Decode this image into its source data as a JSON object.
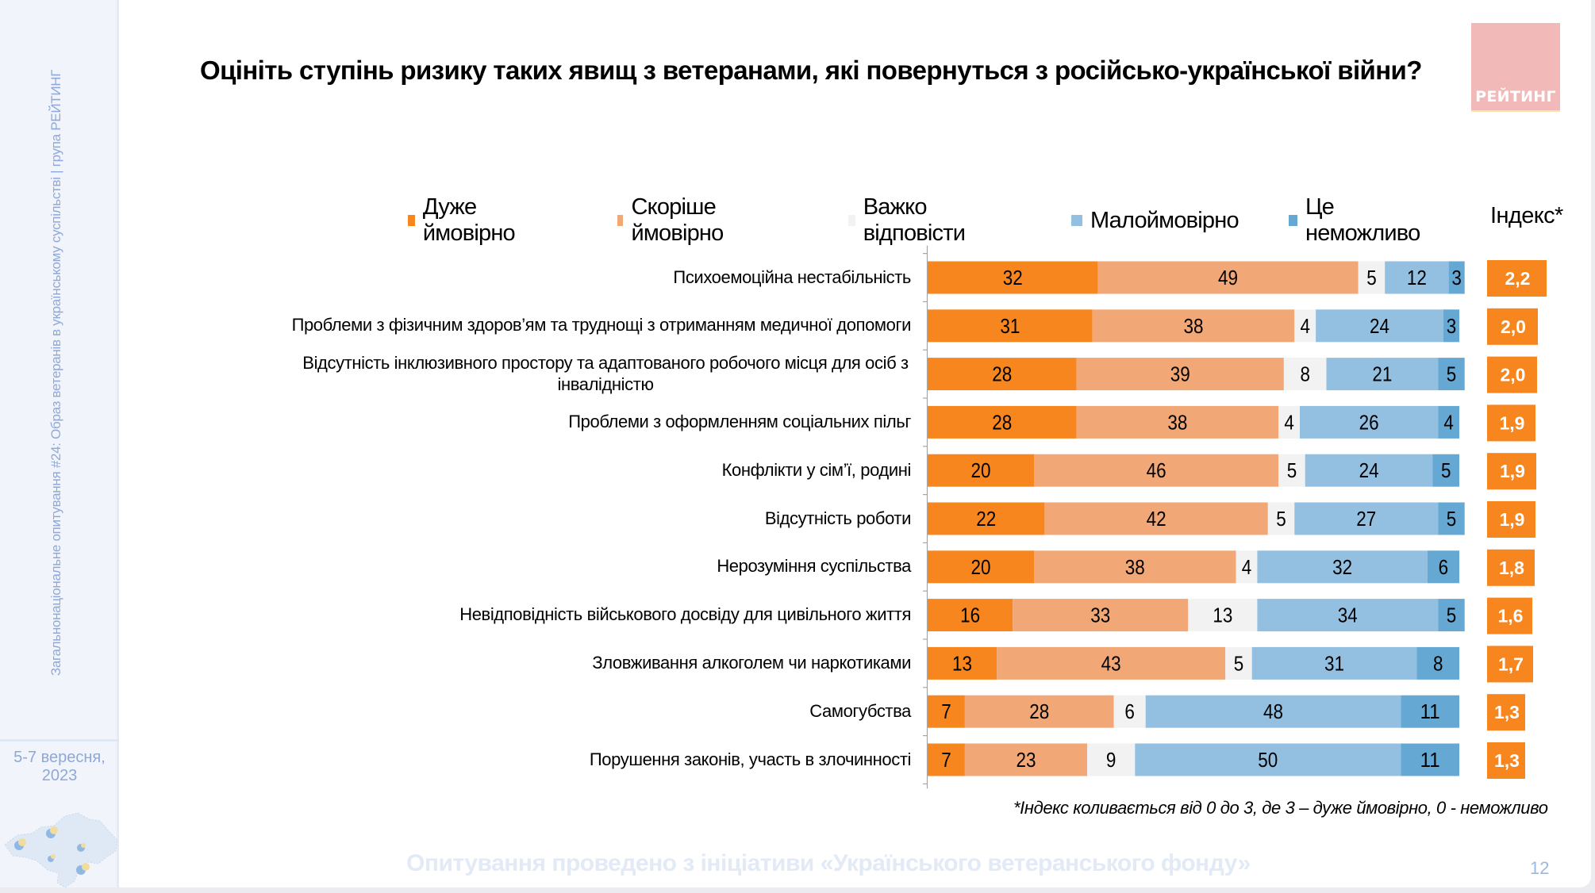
{
  "sidebar": {
    "vertical_text": "Загальнонаціональне опитування #24: Образ ветеранів в українському суспільстві | група РЕЙТИНГ",
    "date_line1": "5-7 вересня,",
    "date_line2": "2023",
    "map_icon": "ukraine-map-icon"
  },
  "header": {
    "title": "Оцініть ступінь ризику таких явищ з ветеранами, які повернуться з російсько-української війни?",
    "logo_text": "РЕЙТИНГ",
    "logo_color": "#f2b9b9"
  },
  "footer": {
    "footnote": "*Індекс коливається від 0 до 3, де 3 – дуже ймовірно, 0 - неможливо",
    "initiative": "Опитування проведено з ініціативи «Українського ветеранського фонду»",
    "page_number": "12"
  },
  "chart_data": {
    "type": "bar",
    "orientation": "horizontal",
    "stacked": true,
    "unit": "%",
    "title": "Оцініть ступінь ризику таких явищ з ветеранами, які повернуться з російсько-української війни?",
    "xlabel": "",
    "ylabel": "",
    "legend_position": "top",
    "grid": false,
    "categories": [
      "Психоемоційна нестабільність",
      "Проблеми з фізичним здоров’ям та труднощі з отриманням медичної допомоги",
      "Відсутність інклюзивного простору та адаптованого робочого місця для осіб з інвалідністю",
      "Проблеми з оформленням соціальних пільг",
      "Конфлікти у сім’ї, родині",
      "Відсутність роботи",
      "Нерозуміння суспільства",
      "Невідповідність військового досвіду для цивільного життя",
      "Зловживання алкоголем чи наркотиками",
      "Самогубства",
      "Порушення законів, участь в злочинності"
    ],
    "category_lines": [
      [
        "Психоемоційна нестабільність"
      ],
      [
        "Проблеми з фізичним здоров’ям та труднощі з отриманням медичної допомоги"
      ],
      [
        "Відсутність інклюзивного простору та адаптованого робочого місця для осіб з",
        "інвалідністю"
      ],
      [
        "Проблеми з оформленням соціальних пільг"
      ],
      [
        "Конфлікти у сім’ї, родині"
      ],
      [
        "Відсутність роботи"
      ],
      [
        "Нерозуміння суспільства"
      ],
      [
        "Невідповідність військового досвіду для цивільного життя"
      ],
      [
        "Зловживання алкоголем чи наркотиками"
      ],
      [
        "Самогубства"
      ],
      [
        "Порушення законів, участь в злочинності"
      ]
    ],
    "series": [
      {
        "name": "Дуже ймовірно",
        "color": "#f7861f",
        "values": [
          32,
          31,
          28,
          28,
          20,
          22,
          20,
          16,
          13,
          7,
          7
        ]
      },
      {
        "name": "Скоріше ймовірно",
        "color": "#f2a776",
        "values": [
          49,
          38,
          39,
          38,
          46,
          42,
          38,
          33,
          43,
          28,
          23
        ]
      },
      {
        "name": "Важко відповісти",
        "color": "#f2f2f2",
        "values": [
          5,
          4,
          8,
          4,
          5,
          5,
          4,
          13,
          5,
          6,
          9
        ]
      },
      {
        "name": "Малоймовірно",
        "color": "#93c0e0",
        "values": [
          12,
          24,
          21,
          26,
          24,
          27,
          32,
          34,
          31,
          48,
          50
        ]
      },
      {
        "name": "Це неможливо",
        "color": "#65a8d3",
        "values": [
          3,
          3,
          5,
          4,
          5,
          5,
          6,
          5,
          8,
          11,
          11
        ]
      }
    ],
    "index": {
      "label": "Індекс*",
      "color": "#f7861f",
      "scale": [
        0,
        3
      ],
      "values": [
        "2,2",
        "2,0",
        "2,0",
        "1,9",
        "1,9",
        "1,9",
        "1,8",
        "1,6",
        "1,7",
        "1,3",
        "1,3"
      ],
      "numeric": [
        2.2,
        2.0,
        2.0,
        1.9,
        1.9,
        1.9,
        1.8,
        1.6,
        1.7,
        1.3,
        1.3
      ]
    }
  }
}
